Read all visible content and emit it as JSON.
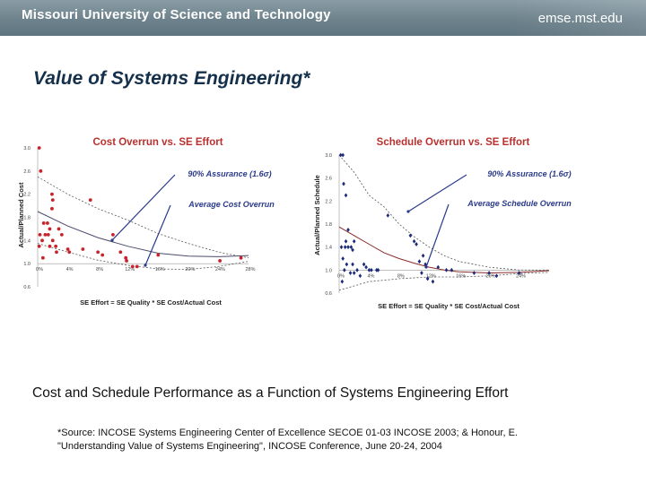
{
  "header": {
    "university": "Missouri University of Science and Technology",
    "site": "emse.mst.edu"
  },
  "slide": {
    "title": "Value of Systems Engineering*",
    "caption": "Cost and Schedule Performance as a Function of Systems Engineering Effort",
    "source_line1": "*Source: INCOSE Systems Engineering Center of Excellence SECOE 01-03 INCOSE 2003; & Honour, E.",
    "source_line2": "\"Understanding Value of Systems Engineering\", INCOSE Conference, June 20-24, 2004"
  },
  "colors": {
    "title": "#14304a",
    "chart_title": "#b8312f",
    "annotation": "#2a3a8a",
    "cost_points": "#c8222a",
    "schedule_points": "#1c2a7a"
  },
  "chart_data": [
    {
      "type": "scatter",
      "title": "Cost Overrun vs. SE Effort",
      "xlabel": "SE Effort = SE Quality * SE Cost/Actual Cost",
      "ylabel": "Actual/Planned Cost",
      "xlim": [
        0,
        28
      ],
      "ylim": [
        0.6,
        3.0
      ],
      "x_ticks": [
        "0%",
        "4%",
        "8%",
        "12%",
        "16%",
        "20%",
        "24%",
        "28%"
      ],
      "y_ticks": [
        "0.6",
        "1.0",
        "1.4",
        "1.8",
        "2.2",
        "2.6",
        "3.0"
      ],
      "annotations": [
        "90% Assurance (1.6σ)",
        "Average Cost Overrun"
      ],
      "points": [
        [
          0.2,
          3.0
        ],
        [
          0.4,
          2.6
        ],
        [
          0.3,
          1.5
        ],
        [
          0.2,
          1.3
        ],
        [
          0.8,
          1.7
        ],
        [
          0.6,
          1.4
        ],
        [
          0.7,
          1.1
        ],
        [
          1.3,
          1.7
        ],
        [
          1.6,
          1.6
        ],
        [
          1.9,
          2.2
        ],
        [
          2.0,
          2.1
        ],
        [
          1.9,
          1.95
        ],
        [
          1.4,
          1.5
        ],
        [
          1.0,
          1.5
        ],
        [
          2.4,
          1.3
        ],
        [
          1.6,
          1.3
        ],
        [
          2.5,
          1.2
        ],
        [
          2.8,
          1.6
        ],
        [
          3.2,
          1.5
        ],
        [
          2.0,
          1.4
        ],
        [
          4.2,
          1.2
        ],
        [
          4.0,
          1.25
        ],
        [
          6.0,
          1.25
        ],
        [
          7.0,
          2.1
        ],
        [
          8.0,
          1.2
        ],
        [
          8.6,
          1.15
        ],
        [
          10.0,
          1.5
        ],
        [
          11.0,
          1.2
        ],
        [
          11.7,
          1.1
        ],
        [
          11.8,
          1.05
        ],
        [
          12.6,
          0.95
        ],
        [
          13.2,
          0.95
        ],
        [
          16.0,
          1.15
        ],
        [
          24.2,
          1.05
        ],
        [
          27.0,
          1.1
        ]
      ],
      "series": [
        {
          "name": "Average Cost Overrun",
          "values": [
            [
              0,
              1.9
            ],
            [
              4,
              1.65
            ],
            [
              8,
              1.45
            ],
            [
              12,
              1.3
            ],
            [
              16,
              1.18
            ],
            [
              20,
              1.13
            ],
            [
              24,
              1.12
            ],
            [
              28,
              1.14
            ]
          ]
        },
        {
          "name": "90% Assurance upper",
          "values": [
            [
              0,
              2.5
            ],
            [
              4,
              2.2
            ],
            [
              8,
              1.95
            ],
            [
              12,
              1.75
            ],
            [
              16,
              1.52
            ],
            [
              20,
              1.35
            ],
            [
              24,
              1.2
            ],
            [
              28,
              1.1
            ]
          ]
        },
        {
          "name": "90% Assurance lower",
          "values": [
            [
              0,
              1.35
            ],
            [
              4,
              1.2
            ],
            [
              8,
              1.06
            ],
            [
              12,
              0.97
            ],
            [
              16,
              0.91
            ],
            [
              20,
              0.9
            ],
            [
              24,
              0.95
            ],
            [
              28,
              1.04
            ]
          ]
        }
      ],
      "grid": false,
      "legend": "none"
    },
    {
      "type": "scatter",
      "title": "Schedule Overrun vs. SE Effort",
      "xlabel": "SE Effort = SE Quality * SE Cost/Actual Cost",
      "ylabel": "Actual/Planned Schedule",
      "xlim": [
        0,
        28
      ],
      "ylim": [
        0.6,
        3.0
      ],
      "x_ticks": [
        "0%",
        "4%",
        "8%",
        "12%",
        "16%",
        "20%",
        "24%"
      ],
      "y_ticks": [
        "0.6",
        "1.0",
        "1.4",
        "1.8",
        "2.2",
        "2.6",
        "3.0"
      ],
      "annotations": [
        "90% Assurance (1.6σ)",
        "Average Schedule Overrun"
      ],
      "points": [
        [
          0.2,
          3.0
        ],
        [
          0.5,
          3.0
        ],
        [
          0.6,
          2.5
        ],
        [
          0.9,
          2.3
        ],
        [
          1.2,
          1.7
        ],
        [
          0.9,
          1.5
        ],
        [
          0.3,
          1.4
        ],
        [
          0.8,
          1.4
        ],
        [
          1.2,
          1.4
        ],
        [
          1.6,
          1.4
        ],
        [
          2.0,
          1.5
        ],
        [
          1.8,
          1.35
        ],
        [
          0.5,
          1.2
        ],
        [
          1.0,
          1.1
        ],
        [
          1.8,
          1.1
        ],
        [
          0.7,
          1.0
        ],
        [
          1.5,
          0.95
        ],
        [
          0.4,
          0.8
        ],
        [
          2.0,
          0.95
        ],
        [
          2.4,
          1.0
        ],
        [
          2.8,
          0.9
        ],
        [
          3.3,
          1.1
        ],
        [
          3.6,
          1.05
        ],
        [
          4.0,
          1.0
        ],
        [
          4.3,
          1.0
        ],
        [
          5.0,
          1.0
        ],
        [
          5.2,
          1.0
        ],
        [
          6.5,
          1.95
        ],
        [
          9.5,
          1.6
        ],
        [
          10.0,
          1.5
        ],
        [
          10.3,
          1.45
        ],
        [
          11.2,
          1.25
        ],
        [
          10.7,
          1.15
        ],
        [
          11.5,
          1.1
        ],
        [
          11.0,
          0.95
        ],
        [
          11.8,
          0.85
        ],
        [
          12.5,
          0.8
        ],
        [
          13.2,
          1.05
        ],
        [
          14.3,
          1.0
        ],
        [
          15.0,
          1.0
        ],
        [
          18.0,
          0.95
        ],
        [
          20.0,
          0.95
        ],
        [
          21.0,
          0.9
        ],
        [
          24.0,
          0.95
        ]
      ],
      "series": [
        {
          "name": "Average Schedule Overrun",
          "values": [
            [
              0,
              1.75
            ],
            [
              2,
              1.6
            ],
            [
              4,
              1.45
            ],
            [
              6,
              1.3
            ],
            [
              8,
              1.2
            ],
            [
              10,
              1.12
            ],
            [
              12,
              1.05
            ],
            [
              14,
              1.0
            ],
            [
              16,
              0.97
            ],
            [
              20,
              0.95
            ],
            [
              24,
              0.96
            ],
            [
              28,
              0.99
            ]
          ]
        },
        {
          "name": "90% Assurance upper",
          "values": [
            [
              0,
              3.0
            ],
            [
              2,
              2.7
            ],
            [
              4,
              2.3
            ],
            [
              6,
              2.1
            ],
            [
              8,
              1.8
            ],
            [
              10,
              1.58
            ],
            [
              12,
              1.4
            ],
            [
              14,
              1.25
            ],
            [
              16,
              1.15
            ],
            [
              20,
              1.05
            ],
            [
              24,
              1.0
            ],
            [
              28,
              1.0
            ]
          ]
        },
        {
          "name": "90% Assurance lower",
          "values": [
            [
              0,
              0.65
            ],
            [
              4,
              0.8
            ],
            [
              8,
              0.85
            ],
            [
              12,
              0.88
            ],
            [
              16,
              0.88
            ],
            [
              20,
              0.9
            ],
            [
              24,
              0.94
            ],
            [
              28,
              0.96
            ]
          ]
        }
      ],
      "grid": false,
      "legend": "none"
    }
  ]
}
